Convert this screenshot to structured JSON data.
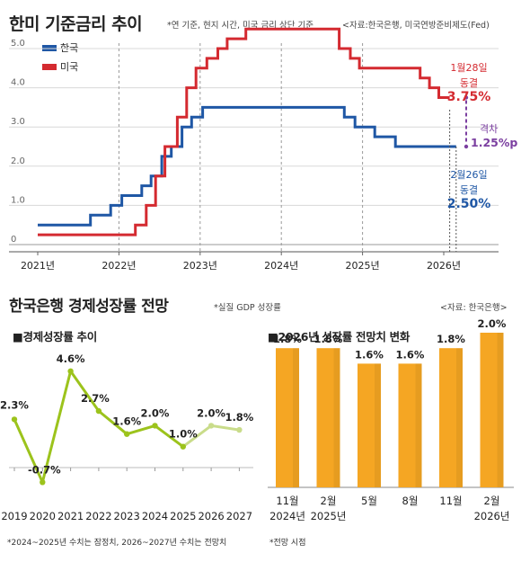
{
  "header": {
    "title": "한미 기준금리 추이",
    "note": "*연 기준, 현지 시간, 미국 금리 상단 기준",
    "source": "<자료:한국은행, 미국연방준비제도(Fed)"
  },
  "rate_annotations": {
    "us_date": "1월28일",
    "us_status": "동결",
    "us_value": "3.75%",
    "gap_label": "격차",
    "gap_value": "1.25%p",
    "kr_date": "2월26일",
    "kr_status": "동결",
    "kr_value": "2.50%"
  },
  "section2": {
    "title": "한국은행 경제성장률 전망",
    "note": "*실질 GDP 성장률",
    "source": "<자료: 한국은행>"
  },
  "growth_panel": {
    "title": "■경제성장률 추이"
  },
  "forecast_panel": {
    "title": "■2026년 성장률 전망치 변화"
  },
  "footnotes": {
    "left": "*2024~2025년 수치는 잠정치, 2026~2027년 수치는 전망치",
    "right": "*전망 시점"
  },
  "chart_data": [
    {
      "type": "line",
      "title": "한미 기준금리 추이",
      "x_ticks": [
        "2021년",
        "2022년",
        "2023년",
        "2024년",
        "2025년",
        "2026년"
      ],
      "y_ticks": [
        "0",
        "1.0",
        "2.0",
        "3.0",
        "4.0",
        "5.0"
      ],
      "ylim": [
        0,
        5.5
      ],
      "grid": "horizontal",
      "legend_position": "top-left",
      "series": [
        {
          "name": "한국",
          "color": "#1f57a5",
          "steps": [
            [
              "2021-01-01",
              0.5
            ],
            [
              "2021-08-26",
              0.75
            ],
            [
              "2021-11-25",
              1.0
            ],
            [
              "2022-01-14",
              1.25
            ],
            [
              "2022-04-14",
              1.5
            ],
            [
              "2022-05-26",
              1.75
            ],
            [
              "2022-07-13",
              2.25
            ],
            [
              "2022-08-25",
              2.5
            ],
            [
              "2022-10-12",
              3.0
            ],
            [
              "2022-11-24",
              3.25
            ],
            [
              "2023-01-13",
              3.5
            ],
            [
              "2024-10-11",
              3.25
            ],
            [
              "2024-11-28",
              3.0
            ],
            [
              "2025-02-25",
              2.75
            ],
            [
              "2025-05-29",
              2.5
            ],
            [
              "2026-02-26",
              2.5
            ]
          ]
        },
        {
          "name": "미국",
          "color": "#d42a30",
          "steps": [
            [
              "2021-01-01",
              0.25
            ],
            [
              "2022-03-16",
              0.5
            ],
            [
              "2022-05-04",
              1.0
            ],
            [
              "2022-06-15",
              1.75
            ],
            [
              "2022-07-27",
              2.5
            ],
            [
              "2022-09-21",
              3.25
            ],
            [
              "2022-11-02",
              4.0
            ],
            [
              "2022-12-14",
              4.5
            ],
            [
              "2023-02-01",
              4.75
            ],
            [
              "2023-03-22",
              5.0
            ],
            [
              "2023-05-03",
              5.25
            ],
            [
              "2023-07-26",
              5.5
            ],
            [
              "2024-09-18",
              5.0
            ],
            [
              "2024-11-07",
              4.75
            ],
            [
              "2024-12-18",
              4.5
            ],
            [
              "2025-09-17",
              4.25
            ],
            [
              "2025-10-29",
              4.0
            ],
            [
              "2025-12-10",
              3.75
            ],
            [
              "2026-01-28",
              3.75
            ]
          ]
        }
      ]
    },
    {
      "type": "line",
      "title": "경제성장률 추이",
      "categories": [
        "2019",
        "2020",
        "2021",
        "2022",
        "2023",
        "2024",
        "2025",
        "2026",
        "2027"
      ],
      "value_labels": [
        "2.3%",
        "-0.7%",
        "4.6%",
        "2.7%",
        "1.6%",
        "2.0%",
        "1.0%",
        "2.0%",
        "1.8%"
      ],
      "values": [
        2.3,
        -0.7,
        4.6,
        2.7,
        1.6,
        2.0,
        1.0,
        2.0,
        1.8
      ],
      "forecast_from": "2026",
      "color": "#9cc31c",
      "forecast_color": "#c9dc8a"
    },
    {
      "type": "bar",
      "title": "2026년 성장률 전망치 변화",
      "categories": [
        "11월\n2024년",
        "2월\n2025년",
        "5월",
        "8월",
        "11월",
        "2월\n2026년"
      ],
      "value_labels": [
        "1.8%",
        "1.8%",
        "1.6%",
        "1.6%",
        "1.8%",
        "2.0%"
      ],
      "values": [
        1.8,
        1.8,
        1.6,
        1.6,
        1.8,
        2.0
      ],
      "color": "#f5a623"
    }
  ]
}
